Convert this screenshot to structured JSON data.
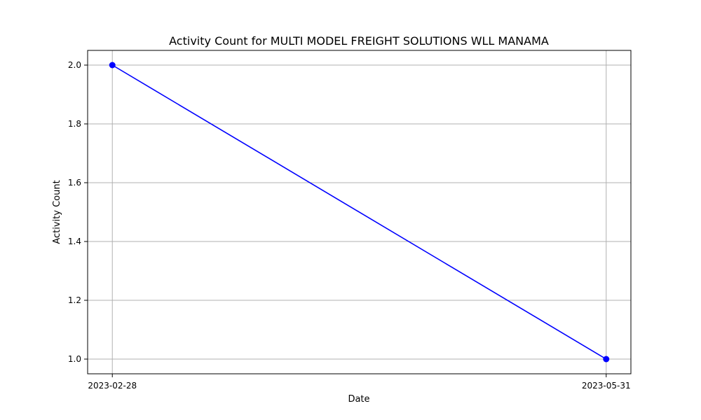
{
  "chart_data": {
    "type": "line",
    "title": "Activity Count for MULTI MODEL FREIGHT SOLUTIONS WLL MANAMA",
    "xlabel": "Date",
    "ylabel": "Activity Count",
    "x": [
      "2023-02-28",
      "2023-05-31"
    ],
    "series": [
      {
        "values": [
          2.0,
          1.0
        ],
        "color": "#0000ff",
        "marker": "circle"
      }
    ],
    "xticks": [
      "2023-02-28",
      "2023-05-31"
    ],
    "yticks": [
      "1.0",
      "1.2",
      "1.4",
      "1.6",
      "1.8",
      "2.0"
    ],
    "ylim": [
      0.95,
      2.05
    ],
    "grid": true
  }
}
